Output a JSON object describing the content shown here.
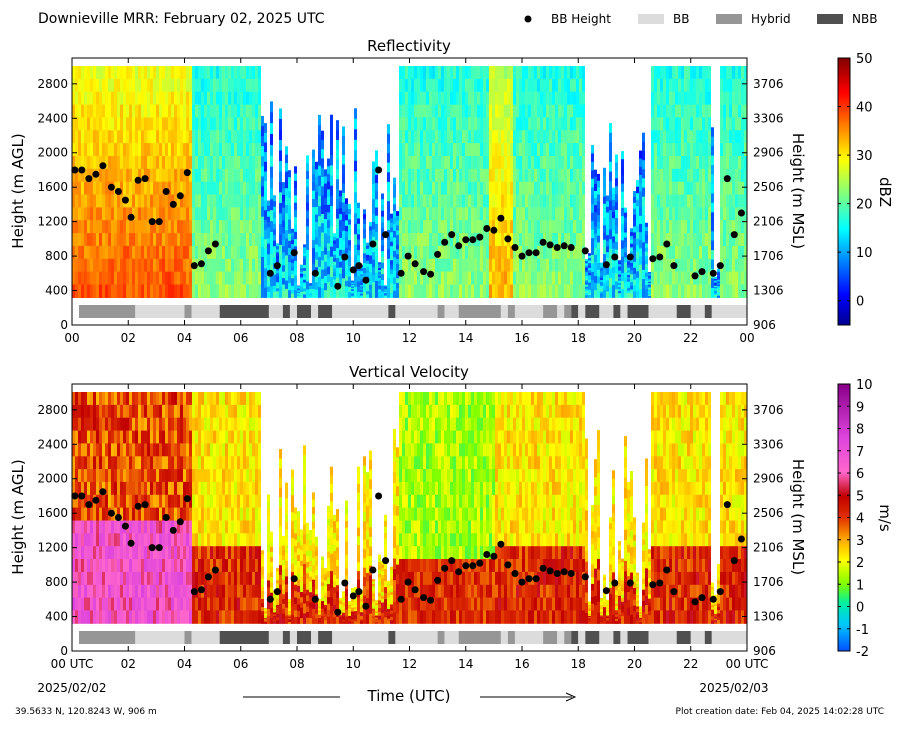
{
  "header": {
    "title": "Downieville MRR:  February 02, 2025 UTC",
    "legend": [
      {
        "label": "BB Height",
        "kind": "dot",
        "color": "#000000"
      },
      {
        "label": "BB",
        "kind": "box",
        "color": "#dcdcdc"
      },
      {
        "label": "Hybrid",
        "kind": "box",
        "color": "#969696"
      },
      {
        "label": "NBB",
        "kind": "box",
        "color": "#505050"
      }
    ]
  },
  "footer": {
    "location": "39.5633 N, 120.8243 W, 906 m",
    "creation": "Plot creation date: Feb 04, 2025 14:02:28 UTC",
    "xlabel": "Time (UTC)",
    "date_start": "2025/02/02",
    "date_end": "2025/02/03"
  },
  "chart_data": [
    {
      "type": "heatmap",
      "title": "Reflectivity",
      "ylabel": "Height (m AGL)",
      "y2label": "Height (m MSL)",
      "xlim": [
        0,
        24
      ],
      "ylim": [
        0,
        3000
      ],
      "x_ticks": [
        "00",
        "02",
        "04",
        "06",
        "08",
        "10",
        "12",
        "14",
        "16",
        "18",
        "20",
        "22",
        "00"
      ],
      "y_ticks": [
        0,
        400,
        800,
        1200,
        1600,
        2000,
        2400,
        2800
      ],
      "y2_ticks": [
        906,
        1306,
        1706,
        2106,
        2506,
        2906,
        3306,
        3706
      ],
      "colorbar": {
        "label": "dBZ",
        "min": -5,
        "max": 50,
        "ticks": [
          0,
          10,
          20,
          30,
          40,
          50
        ]
      }
    },
    {
      "type": "heatmap",
      "title": "Vertical Velocity",
      "ylabel": "Height (m AGL)",
      "y2label": "Height (m MSL)",
      "xlim": [
        0,
        24
      ],
      "ylim": [
        0,
        3000
      ],
      "x_ticks": [
        "00 UTC",
        "02",
        "04",
        "06",
        "08",
        "10",
        "12",
        "14",
        "16",
        "18",
        "20",
        "22",
        "00 UTC"
      ],
      "y_ticks": [
        0,
        400,
        800,
        1200,
        1600,
        2000,
        2400,
        2800
      ],
      "y2_ticks": [
        906,
        1306,
        1706,
        2106,
        2506,
        2906,
        3306,
        3706
      ],
      "colorbar": {
        "label": "m/s",
        "min": -2,
        "max": 10,
        "ticks": [
          -2,
          -1,
          0,
          1,
          2,
          3,
          4,
          5,
          6,
          7,
          8,
          9,
          10
        ]
      }
    }
  ],
  "bb_height": {
    "x": [
      0.1,
      0.35,
      0.6,
      0.85,
      1.1,
      1.4,
      1.65,
      1.9,
      2.1,
      2.35,
      2.6,
      2.85,
      3.1,
      3.35,
      3.6,
      3.85,
      4.1,
      4.35,
      4.6,
      4.85,
      5.1,
      7.05,
      7.3,
      7.9,
      8.65,
      9.45,
      9.7,
      10.0,
      10.2,
      10.45,
      10.7,
      10.9,
      11.15,
      11.7,
      11.95,
      12.2,
      12.5,
      12.75,
      13.0,
      13.25,
      13.5,
      13.75,
      14.0,
      14.25,
      14.5,
      14.75,
      15.0,
      15.25,
      15.5,
      15.75,
      16.0,
      16.25,
      16.5,
      16.75,
      17.0,
      17.25,
      17.5,
      17.75,
      18.25,
      19.0,
      19.3,
      19.85,
      20.65,
      20.9,
      21.15,
      21.4,
      22.15,
      22.4,
      22.8,
      23.05,
      23.3,
      23.55,
      23.8
    ]
  },
  "bb_height_y": [
    1800,
    1800,
    1700,
    1750,
    1850,
    1600,
    1550,
    1450,
    1250,
    1680,
    1700,
    1200,
    1200,
    1550,
    1400,
    1500,
    1770,
    690,
    710,
    860,
    940,
    600,
    690,
    840,
    600,
    450,
    790,
    640,
    690,
    520,
    940,
    1800,
    1050,
    600,
    800,
    710,
    620,
    590,
    820,
    960,
    1050,
    920,
    990,
    990,
    1020,
    1120,
    1100,
    1240,
    1000,
    900,
    800,
    840,
    840,
    960,
    930,
    900,
    920,
    900,
    860,
    700,
    790,
    790,
    770,
    790,
    940,
    690,
    570,
    620,
    600,
    690,
    1700,
    1050,
    1300
  ],
  "bb_class": [
    {
      "start": 0.25,
      "end": 2.25,
      "cls": "Hybrid"
    },
    {
      "start": 2.25,
      "end": 4.0,
      "cls": "BB"
    },
    {
      "start": 4.0,
      "end": 4.25,
      "cls": "Hybrid"
    },
    {
      "start": 4.25,
      "end": 5.25,
      "cls": "BB"
    },
    {
      "start": 5.25,
      "end": 7.0,
      "cls": "NBB"
    },
    {
      "start": 7.0,
      "end": 7.5,
      "cls": "BB"
    },
    {
      "start": 7.5,
      "end": 7.75,
      "cls": "NBB"
    },
    {
      "start": 7.75,
      "end": 8.0,
      "cls": "BB"
    },
    {
      "start": 8.0,
      "end": 8.5,
      "cls": "NBB"
    },
    {
      "start": 8.5,
      "end": 8.75,
      "cls": "BB"
    },
    {
      "start": 8.75,
      "end": 9.25,
      "cls": "NBB"
    },
    {
      "start": 9.25,
      "end": 11.25,
      "cls": "BB"
    },
    {
      "start": 11.25,
      "end": 11.5,
      "cls": "NBB"
    },
    {
      "start": 11.5,
      "end": 13.0,
      "cls": "BB"
    },
    {
      "start": 13.0,
      "end": 13.25,
      "cls": "Hybrid"
    },
    {
      "start": 13.25,
      "end": 13.75,
      "cls": "BB"
    },
    {
      "start": 13.75,
      "end": 15.25,
      "cls": "Hybrid"
    },
    {
      "start": 15.25,
      "end": 15.5,
      "cls": "BB"
    },
    {
      "start": 15.5,
      "end": 15.75,
      "cls": "Hybrid"
    },
    {
      "start": 15.75,
      "end": 16.75,
      "cls": "BB"
    },
    {
      "start": 16.75,
      "end": 17.25,
      "cls": "Hybrid"
    },
    {
      "start": 17.25,
      "end": 17.5,
      "cls": "BB"
    },
    {
      "start": 17.5,
      "end": 17.75,
      "cls": "Hybrid"
    },
    {
      "start": 17.75,
      "end": 18.0,
      "cls": "NBB"
    },
    {
      "start": 18.0,
      "end": 18.25,
      "cls": "BB"
    },
    {
      "start": 18.25,
      "end": 18.75,
      "cls": "NBB"
    },
    {
      "start": 18.75,
      "end": 19.25,
      "cls": "BB"
    },
    {
      "start": 19.25,
      "end": 19.5,
      "cls": "NBB"
    },
    {
      "start": 19.5,
      "end": 19.75,
      "cls": "BB"
    },
    {
      "start": 19.75,
      "end": 20.5,
      "cls": "NBB"
    },
    {
      "start": 20.5,
      "end": 21.5,
      "cls": "BB"
    },
    {
      "start": 21.5,
      "end": 22.0,
      "cls": "NBB"
    },
    {
      "start": 22.0,
      "end": 22.5,
      "cls": "BB"
    },
    {
      "start": 22.5,
      "end": 22.75,
      "cls": "NBB"
    },
    {
      "start": 22.75,
      "end": 24.0,
      "cls": "BB"
    }
  ],
  "data_gaps": [
    [
      6.7,
      11.55
    ],
    [
      18.2,
      20.55
    ],
    [
      22.7,
      23.0
    ]
  ],
  "colors": {
    "BB": "#dcdcdc",
    "Hybrid": "#969696",
    "NBB": "#505050"
  }
}
